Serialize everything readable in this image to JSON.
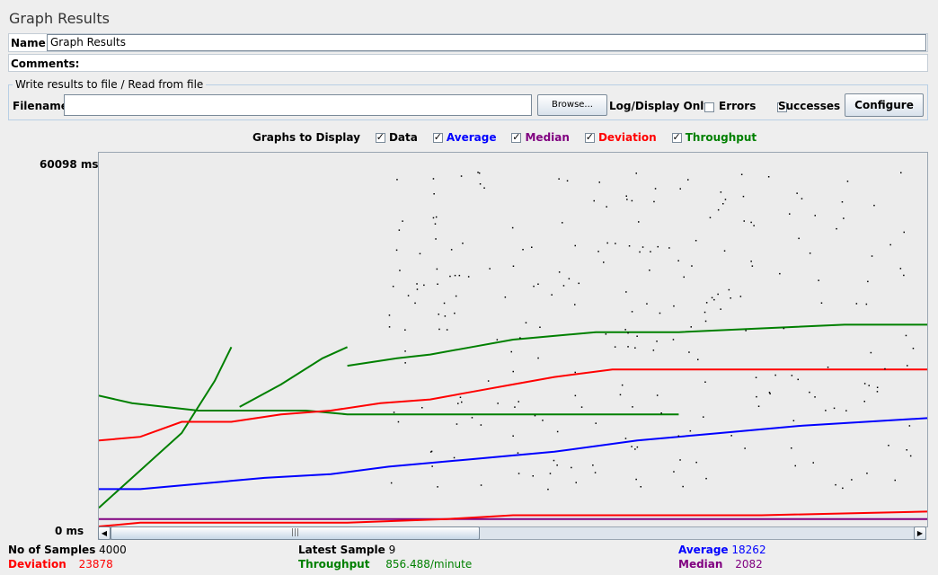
{
  "window": {
    "title": "Graph Results"
  },
  "name": {
    "label": "Name:",
    "value": "Graph Results"
  },
  "comments": {
    "label": "Comments:",
    "value": ""
  },
  "file": {
    "legend": "Write results to file / Read from file",
    "filename_label": "Filename",
    "filename_value": "",
    "browse_label": "Browse...",
    "log_display_label": "Log/Display Only:",
    "errors_label": "Errors",
    "errors_checked": false,
    "successes_label": "Successes",
    "successes_checked": false,
    "configure_label": "Configure"
  },
  "graphs_to_display": {
    "label": "Graphs to Display",
    "items": [
      {
        "label": "Data",
        "checked": true,
        "color": "#000000"
      },
      {
        "label": "Average",
        "checked": true,
        "color": "#0000ff"
      },
      {
        "label": "Median",
        "checked": true,
        "color": "#800080"
      },
      {
        "label": "Deviation",
        "checked": true,
        "color": "#ff0000"
      },
      {
        "label": "Throughput",
        "checked": true,
        "color": "#008000"
      }
    ]
  },
  "chart_data": {
    "type": "line",
    "ylim": [
      0,
      60098
    ],
    "y_top_label": "60098 ms",
    "y_bottom_label": "0 ms",
    "series": [
      {
        "key": "throughput",
        "color": "#008000",
        "points": [
          [
            0,
            0.65
          ],
          [
            0.04,
            0.67
          ],
          [
            0.08,
            0.68
          ],
          [
            0.12,
            0.69
          ],
          [
            0.18,
            0.69
          ],
          [
            0.25,
            0.69
          ],
          [
            0.3,
            0.7
          ],
          [
            0.4,
            0.7
          ],
          [
            0.5,
            0.7
          ],
          [
            0.6,
            0.7
          ],
          [
            0.7,
            0.7
          ]
        ]
      },
      {
        "key": "throughput-b",
        "color": "#008000",
        "points": [
          [
            0.0,
            0.95
          ],
          [
            0.05,
            0.85
          ],
          [
            0.1,
            0.75
          ],
          [
            0.14,
            0.61
          ],
          [
            0.16,
            0.52
          ]
        ]
      },
      {
        "key": "throughput-c",
        "color": "#008000",
        "points": [
          [
            0.17,
            0.68
          ],
          [
            0.22,
            0.62
          ],
          [
            0.27,
            0.55
          ],
          [
            0.3,
            0.52
          ]
        ]
      },
      {
        "key": "throughput-d",
        "color": "#008000",
        "points": [
          [
            0.3,
            0.57
          ],
          [
            0.36,
            0.55
          ],
          [
            0.4,
            0.54
          ],
          [
            0.45,
            0.52
          ],
          [
            0.5,
            0.5
          ],
          [
            0.6,
            0.48
          ],
          [
            0.7,
            0.48
          ],
          [
            0.8,
            0.47
          ],
          [
            0.9,
            0.46
          ],
          [
            1.0,
            0.46
          ]
        ]
      },
      {
        "key": "deviation",
        "color": "#ff0000",
        "points": [
          [
            0,
            0.77
          ],
          [
            0.05,
            0.76
          ],
          [
            0.1,
            0.72
          ],
          [
            0.16,
            0.72
          ],
          [
            0.22,
            0.7
          ],
          [
            0.28,
            0.69
          ],
          [
            0.34,
            0.67
          ],
          [
            0.4,
            0.66
          ],
          [
            0.45,
            0.64
          ],
          [
            0.5,
            0.62
          ],
          [
            0.55,
            0.6
          ],
          [
            0.62,
            0.58
          ],
          [
            0.68,
            0.58
          ],
          [
            0.75,
            0.58
          ],
          [
            0.85,
            0.58
          ],
          [
            1.0,
            0.58
          ]
        ]
      },
      {
        "key": "average",
        "color": "#0000ff",
        "points": [
          [
            0,
            0.9
          ],
          [
            0.05,
            0.9
          ],
          [
            0.1,
            0.89
          ],
          [
            0.2,
            0.87
          ],
          [
            0.28,
            0.86
          ],
          [
            0.35,
            0.84
          ],
          [
            0.45,
            0.82
          ],
          [
            0.55,
            0.8
          ],
          [
            0.65,
            0.77
          ],
          [
            0.75,
            0.75
          ],
          [
            0.85,
            0.73
          ],
          [
            1.0,
            0.71
          ]
        ]
      },
      {
        "key": "median",
        "color": "#800080",
        "points": [
          [
            0,
            0.98
          ],
          [
            0.2,
            0.98
          ],
          [
            0.4,
            0.98
          ],
          [
            0.6,
            0.98
          ],
          [
            0.8,
            0.98
          ],
          [
            1.0,
            0.98
          ]
        ]
      },
      {
        "key": "deviation-low",
        "color": "#ff0000",
        "points": [
          [
            0,
            1.0
          ],
          [
            0.05,
            0.99
          ],
          [
            0.1,
            0.99
          ],
          [
            0.2,
            0.99
          ],
          [
            0.3,
            0.99
          ],
          [
            0.42,
            0.98
          ],
          [
            0.5,
            0.97
          ],
          [
            0.6,
            0.97
          ],
          [
            0.8,
            0.97
          ],
          [
            1.0,
            0.96
          ]
        ]
      }
    ]
  },
  "scroll": {
    "left_arrow": "◀",
    "right_arrow": "▶",
    "thumb_grip": "|||"
  },
  "stats": {
    "samples_label": "No of Samples",
    "samples_value": "4000",
    "latest_label": "Latest Sample",
    "latest_value": "9",
    "average_label": "Average",
    "average_value": "18262",
    "deviation_label": "Deviation",
    "deviation_value": "23878",
    "throughput_label": "Throughput",
    "throughput_value": "856.488/minute",
    "median_label": "Median",
    "median_value": "2082"
  }
}
